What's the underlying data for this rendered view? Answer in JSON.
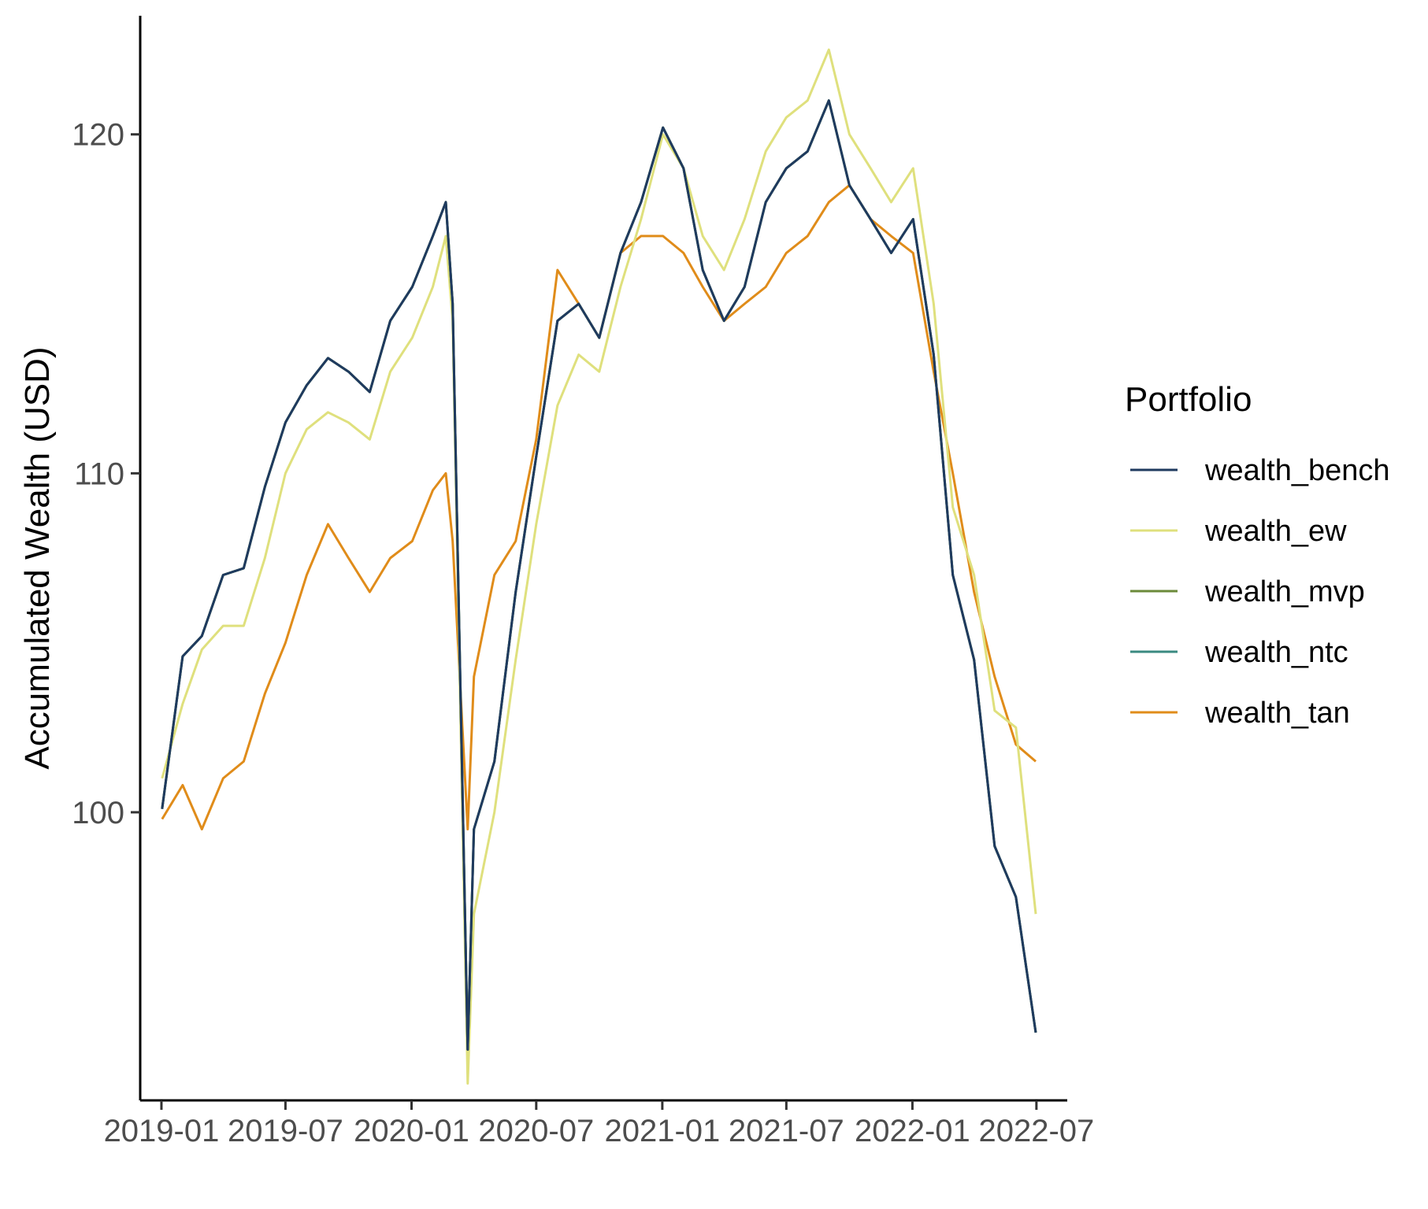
{
  "chart_data": {
    "type": "line",
    "title": "",
    "xlabel": "",
    "ylabel": "Accumulated Wealth (USD)",
    "x_ticks": [
      "2019-01",
      "2019-07",
      "2020-01",
      "2020-07",
      "2021-01",
      "2021-07",
      "2022-01",
      "2022-07"
    ],
    "y_ticks": [
      100,
      110,
      120
    ],
    "xlim": [
      "2018-12-01",
      "2022-08-15"
    ],
    "ylim": [
      91.5,
      123.5
    ],
    "grid": false,
    "legend": {
      "title": "Portfolio",
      "position": "right"
    },
    "x": [
      "2019-01-02",
      "2019-02-01",
      "2019-03-01",
      "2019-04-01",
      "2019-05-01",
      "2019-06-01",
      "2019-07-01",
      "2019-08-01",
      "2019-09-01",
      "2019-10-01",
      "2019-11-01",
      "2019-12-01",
      "2020-01-02",
      "2020-02-01",
      "2020-02-20",
      "2020-03-01",
      "2020-03-23",
      "2020-04-01",
      "2020-05-01",
      "2020-06-01",
      "2020-07-01",
      "2020-08-01",
      "2020-09-01",
      "2020-10-01",
      "2020-11-01",
      "2020-12-01",
      "2021-01-02",
      "2021-02-01",
      "2021-03-01",
      "2021-04-01",
      "2021-05-01",
      "2021-06-01",
      "2021-07-01",
      "2021-08-01",
      "2021-09-01",
      "2021-10-01",
      "2021-11-01",
      "2021-12-01",
      "2022-01-02",
      "2022-02-01",
      "2022-03-01",
      "2022-04-01",
      "2022-05-01",
      "2022-06-01",
      "2022-06-30"
    ],
    "series": [
      {
        "name": "wealth_bench",
        "color": "#1f3a5f",
        "values": [
          100.1,
          104.6,
          105.2,
          107.0,
          107.2,
          109.6,
          111.5,
          112.6,
          113.4,
          113.0,
          112.4,
          114.5,
          115.5,
          117.0,
          118.0,
          115.0,
          93.0,
          99.5,
          101.5,
          106.5,
          110.5,
          114.5,
          115.0,
          114.0,
          116.5,
          118.0,
          120.2,
          119.0,
          116.0,
          114.5,
          115.5,
          118.0,
          119.0,
          119.5,
          121.0,
          118.5,
          117.5,
          116.5,
          117.5,
          113.5,
          107.0,
          104.5,
          99.0,
          97.5,
          93.5
        ]
      },
      {
        "name": "wealth_ew",
        "color": "#dfe07d",
        "values": [
          101.0,
          103.2,
          104.8,
          105.5,
          105.5,
          107.5,
          110.0,
          111.3,
          111.8,
          111.5,
          111.0,
          113.0,
          114.0,
          115.5,
          117.0,
          114.5,
          92.0,
          97.0,
          100.0,
          104.5,
          108.5,
          112.0,
          113.5,
          113.0,
          115.5,
          117.5,
          120.0,
          119.0,
          117.0,
          116.0,
          117.5,
          119.5,
          120.5,
          121.0,
          122.5,
          120.0,
          119.0,
          118.0,
          119.0,
          115.0,
          109.0,
          107.0,
          103.0,
          102.5,
          97.0
        ]
      },
      {
        "name": "wealth_mvp",
        "color": "#6b8a3a",
        "values": [
          100.1,
          104.6,
          105.2,
          107.0,
          107.2,
          109.6,
          111.5,
          112.6,
          113.4,
          113.0,
          112.4,
          114.5,
          115.5,
          117.0,
          118.0,
          115.0,
          93.0,
          99.5,
          101.5,
          106.5,
          110.5,
          114.5,
          115.0,
          114.0,
          116.5,
          118.0,
          120.2,
          119.0,
          116.0,
          114.5,
          115.5,
          118.0,
          119.0,
          119.5,
          121.0,
          118.5,
          117.5,
          116.5,
          117.5,
          113.5,
          107.0,
          104.5,
          99.0,
          97.5,
          93.5
        ]
      },
      {
        "name": "wealth_ntc",
        "color": "#3a8a80",
        "values": [
          100.1,
          104.6,
          105.2,
          107.0,
          107.2,
          109.6,
          111.5,
          112.6,
          113.4,
          113.0,
          112.4,
          114.5,
          115.5,
          117.0,
          118.0,
          115.0,
          93.0,
          99.5,
          101.5,
          106.5,
          110.5,
          114.5,
          115.0,
          114.0,
          116.5,
          118.0,
          120.2,
          119.0,
          116.0,
          114.5,
          115.5,
          118.0,
          119.0,
          119.5,
          121.0,
          118.5,
          117.5,
          116.5,
          117.5,
          113.5,
          107.0,
          104.5,
          99.0,
          97.5,
          93.5
        ]
      },
      {
        "name": "wealth_tan",
        "color": "#e08c1a",
        "values": [
          99.8,
          100.8,
          99.5,
          101.0,
          101.5,
          103.5,
          105.0,
          107.0,
          108.5,
          107.5,
          106.5,
          107.5,
          108.0,
          109.5,
          110.0,
          108.0,
          99.5,
          104.0,
          107.0,
          108.0,
          111.0,
          116.0,
          115.0,
          114.0,
          116.5,
          117.0,
          117.0,
          116.5,
          115.5,
          114.5,
          115.0,
          115.5,
          116.5,
          117.0,
          118.0,
          118.5,
          117.5,
          117.0,
          116.5,
          113.0,
          110.0,
          106.5,
          104.0,
          102.0,
          101.5
        ]
      }
    ]
  }
}
